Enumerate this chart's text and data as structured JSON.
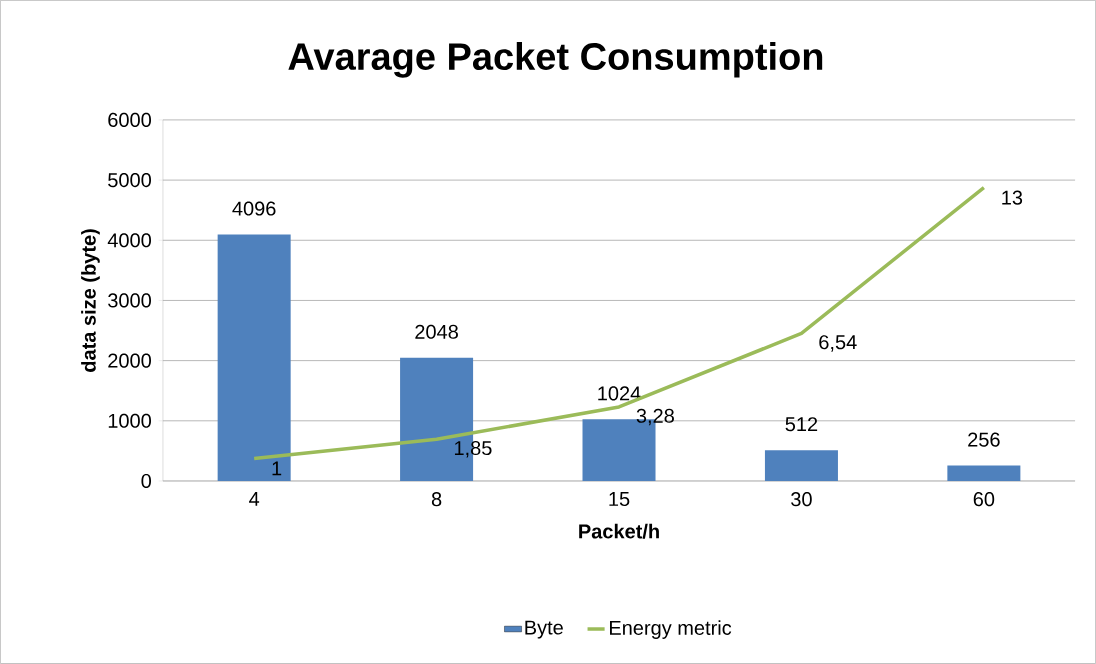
{
  "chart_data": {
    "type": "bar",
    "title": "Avarage Packet Consumption",
    "xlabel": "Packet/h",
    "ylabel": "data size (byte)",
    "categories": [
      "4",
      "8",
      "15",
      "30",
      "60"
    ],
    "series": [
      {
        "name": "Byte",
        "color": "#4f81bd",
        "values": [
          4096,
          2048,
          1024,
          512,
          256
        ],
        "value_labels": [
          "4096",
          "2048",
          "1024",
          "512",
          "256"
        ]
      },
      {
        "name": "Energy metric",
        "type": "line",
        "axis": "y2",
        "color": "#9bbb59",
        "values": [
          1,
          1.85,
          3.28,
          6.54,
          13
        ],
        "value_labels": [
          "1",
          "1,85",
          "3,28",
          "6,54",
          "13"
        ]
      }
    ],
    "ylim": [
      0,
      6000
    ],
    "yticks": [
      0,
      1000,
      2000,
      3000,
      4000,
      5000,
      6000
    ],
    "y2lim": [
      0,
      16
    ],
    "grid": "y",
    "legend": "bottom",
    "marker": "none",
    "line_style": "solid"
  }
}
